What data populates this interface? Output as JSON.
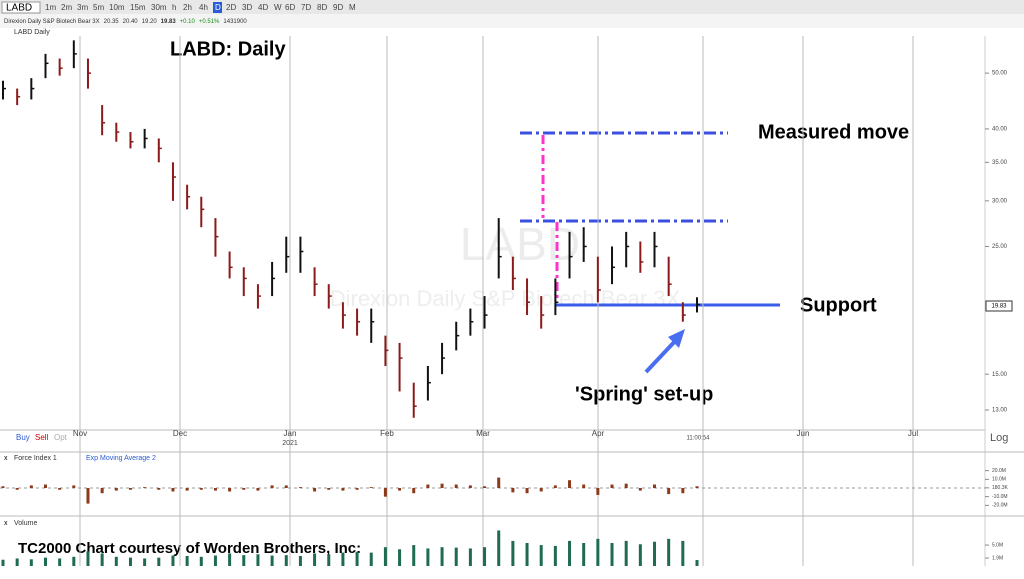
{
  "toolbar": {
    "symbol": "LABD",
    "intervals": [
      "1m",
      "2m",
      "3m",
      "5m",
      "10m",
      "15m",
      "30m",
      "h",
      "2h",
      "4h",
      "D",
      "2D",
      "3D",
      "4D",
      "W",
      "6D",
      "7D",
      "8D",
      "9D",
      "M"
    ],
    "active": "D",
    "name": "Direxion Daily S&P Biotech Bear 3X",
    "open": "20.35",
    "high": "20.40",
    "low": "19.20",
    "close": "19.83",
    "change": "+0.10",
    "change_pct": "+0.51%",
    "volume": "1431900"
  },
  "pane_title": "LABD Daily",
  "watermark": "LABD",
  "watermark_sub": "Direxion Daily S&P Biotech Bear 3X",
  "months": [
    "Nov",
    "Dec",
    "Jan",
    "Feb",
    "Mar",
    "Apr",
    "Jun",
    "Jul"
  ],
  "year": "2021",
  "clock": "11:00:54",
  "buttons": [
    "Buy",
    "Sell",
    "Opt"
  ],
  "scale_mode": "Log",
  "footer": "TC2000 Chart courtesy of Worden Brothers, Inc:",
  "chart_data": [
    {
      "type": "ohlc",
      "title": "LABD:  Daily",
      "log": true,
      "ylim": [
        12,
        58
      ],
      "yticks": [
        {
          "value": 13,
          "label": "13.00"
        },
        {
          "value": 15,
          "label": "15.00"
        },
        {
          "value": 25,
          "label": "25.00"
        },
        {
          "value": 30,
          "label": "30.00"
        },
        {
          "value": 35,
          "label": "35.00"
        },
        {
          "value": 40,
          "label": "40.00"
        },
        {
          "value": 50,
          "label": "50.00"
        }
      ],
      "up_color": "#111111",
      "down_color": "#8b1a1a",
      "close": [
        47,
        45.5,
        47,
        52,
        51,
        54,
        50,
        41,
        39.5,
        38,
        38.5,
        37,
        33,
        30.5,
        29,
        26,
        23,
        22,
        20.5,
        22,
        24,
        24.5,
        21.5,
        20.5,
        19,
        18.5,
        18.5,
        16.5,
        16,
        13.2,
        14.5,
        16,
        17.5,
        18.5,
        19,
        24,
        22,
        20,
        19,
        20,
        24,
        25,
        21,
        23,
        25,
        23.5,
        25,
        21.5,
        19,
        19.83
      ],
      "high": [
        48.5,
        47,
        49,
        54,
        53,
        57,
        53,
        44,
        41,
        39.5,
        40,
        38.5,
        35,
        32,
        30.5,
        28,
        24.5,
        23,
        21.5,
        23.5,
        26,
        26,
        23,
        21.5,
        20,
        19.5,
        19.5,
        17.5,
        17,
        14.5,
        15.5,
        17,
        18.5,
        19.5,
        20.5,
        28,
        24,
        22,
        20.5,
        22,
        26.5,
        27,
        24,
        25,
        26.5,
        25.5,
        26.5,
        24,
        20,
        20.4
      ],
      "low": [
        45,
        44,
        45,
        49,
        49.5,
        51,
        47,
        39,
        38,
        37,
        37,
        35,
        30,
        29,
        27,
        24,
        22,
        20.5,
        19.5,
        20.5,
        22.5,
        22.5,
        20.5,
        19.5,
        18,
        17.5,
        17,
        15.5,
        14,
        12.6,
        13.5,
        15,
        16.5,
        17.5,
        18,
        22,
        21,
        19,
        18,
        19,
        22,
        23.5,
        20,
        21.5,
        23,
        22.5,
        23,
        20.5,
        18.5,
        19.2
      ],
      "last_label": "19.83",
      "annotations": {
        "measured": "Measured move",
        "support": "Support",
        "spring": "'Spring' set-up"
      }
    },
    {
      "type": "bar",
      "legend": [
        "Force Index 1",
        "Exp Moving Average 2"
      ],
      "color": "#8b3a1a",
      "ylim": [
        -30,
        30
      ],
      "yticks": [
        {
          "value": 20,
          "label": "20.0M"
        },
        {
          "value": 10,
          "label": "10.0M"
        },
        {
          "value": 0.1803,
          "label": "180.3K"
        },
        {
          "value": -10,
          "label": "-10.0M"
        },
        {
          "value": -20,
          "label": "-20.0M"
        }
      ],
      "values": [
        2,
        -2,
        3,
        4,
        -2,
        3,
        -18,
        -6,
        -3,
        -2,
        1,
        -2,
        -4,
        -3,
        -2,
        -3,
        -4,
        -2,
        -3,
        3,
        3,
        1,
        -4,
        -2,
        -3,
        -2,
        1,
        -10,
        -3,
        -6,
        4,
        5,
        4,
        3,
        2,
        12,
        -5,
        -6,
        -4,
        3,
        9,
        4,
        -8,
        4,
        5,
        -3,
        4,
        -7,
        -6,
        2
      ]
    },
    {
      "type": "bar",
      "legend": [
        "Volume"
      ],
      "color": "#1f6b4f",
      "ylim": [
        0,
        11
      ],
      "yticks": [
        {
          "value": 5,
          "label": "5.0M"
        },
        {
          "value": 1.9,
          "label": "1.9M"
        }
      ],
      "values": [
        1.5,
        1.8,
        1.6,
        2,
        1.8,
        2.2,
        3.5,
        3,
        2.2,
        2,
        1.8,
        2,
        2.5,
        2.4,
        2.2,
        2.5,
        3,
        2.6,
        2.8,
        2.5,
        2.6,
        2.4,
        3,
        2.8,
        3.2,
        3.4,
        3.2,
        4.5,
        4,
        5,
        4.2,
        4.5,
        4.4,
        4.2,
        4.5,
        8.5,
        6,
        5.5,
        5,
        4.8,
        6,
        5.5,
        6.5,
        5.5,
        6,
        5.2,
        5.8,
        6.5,
        6,
        1.43
      ]
    }
  ]
}
